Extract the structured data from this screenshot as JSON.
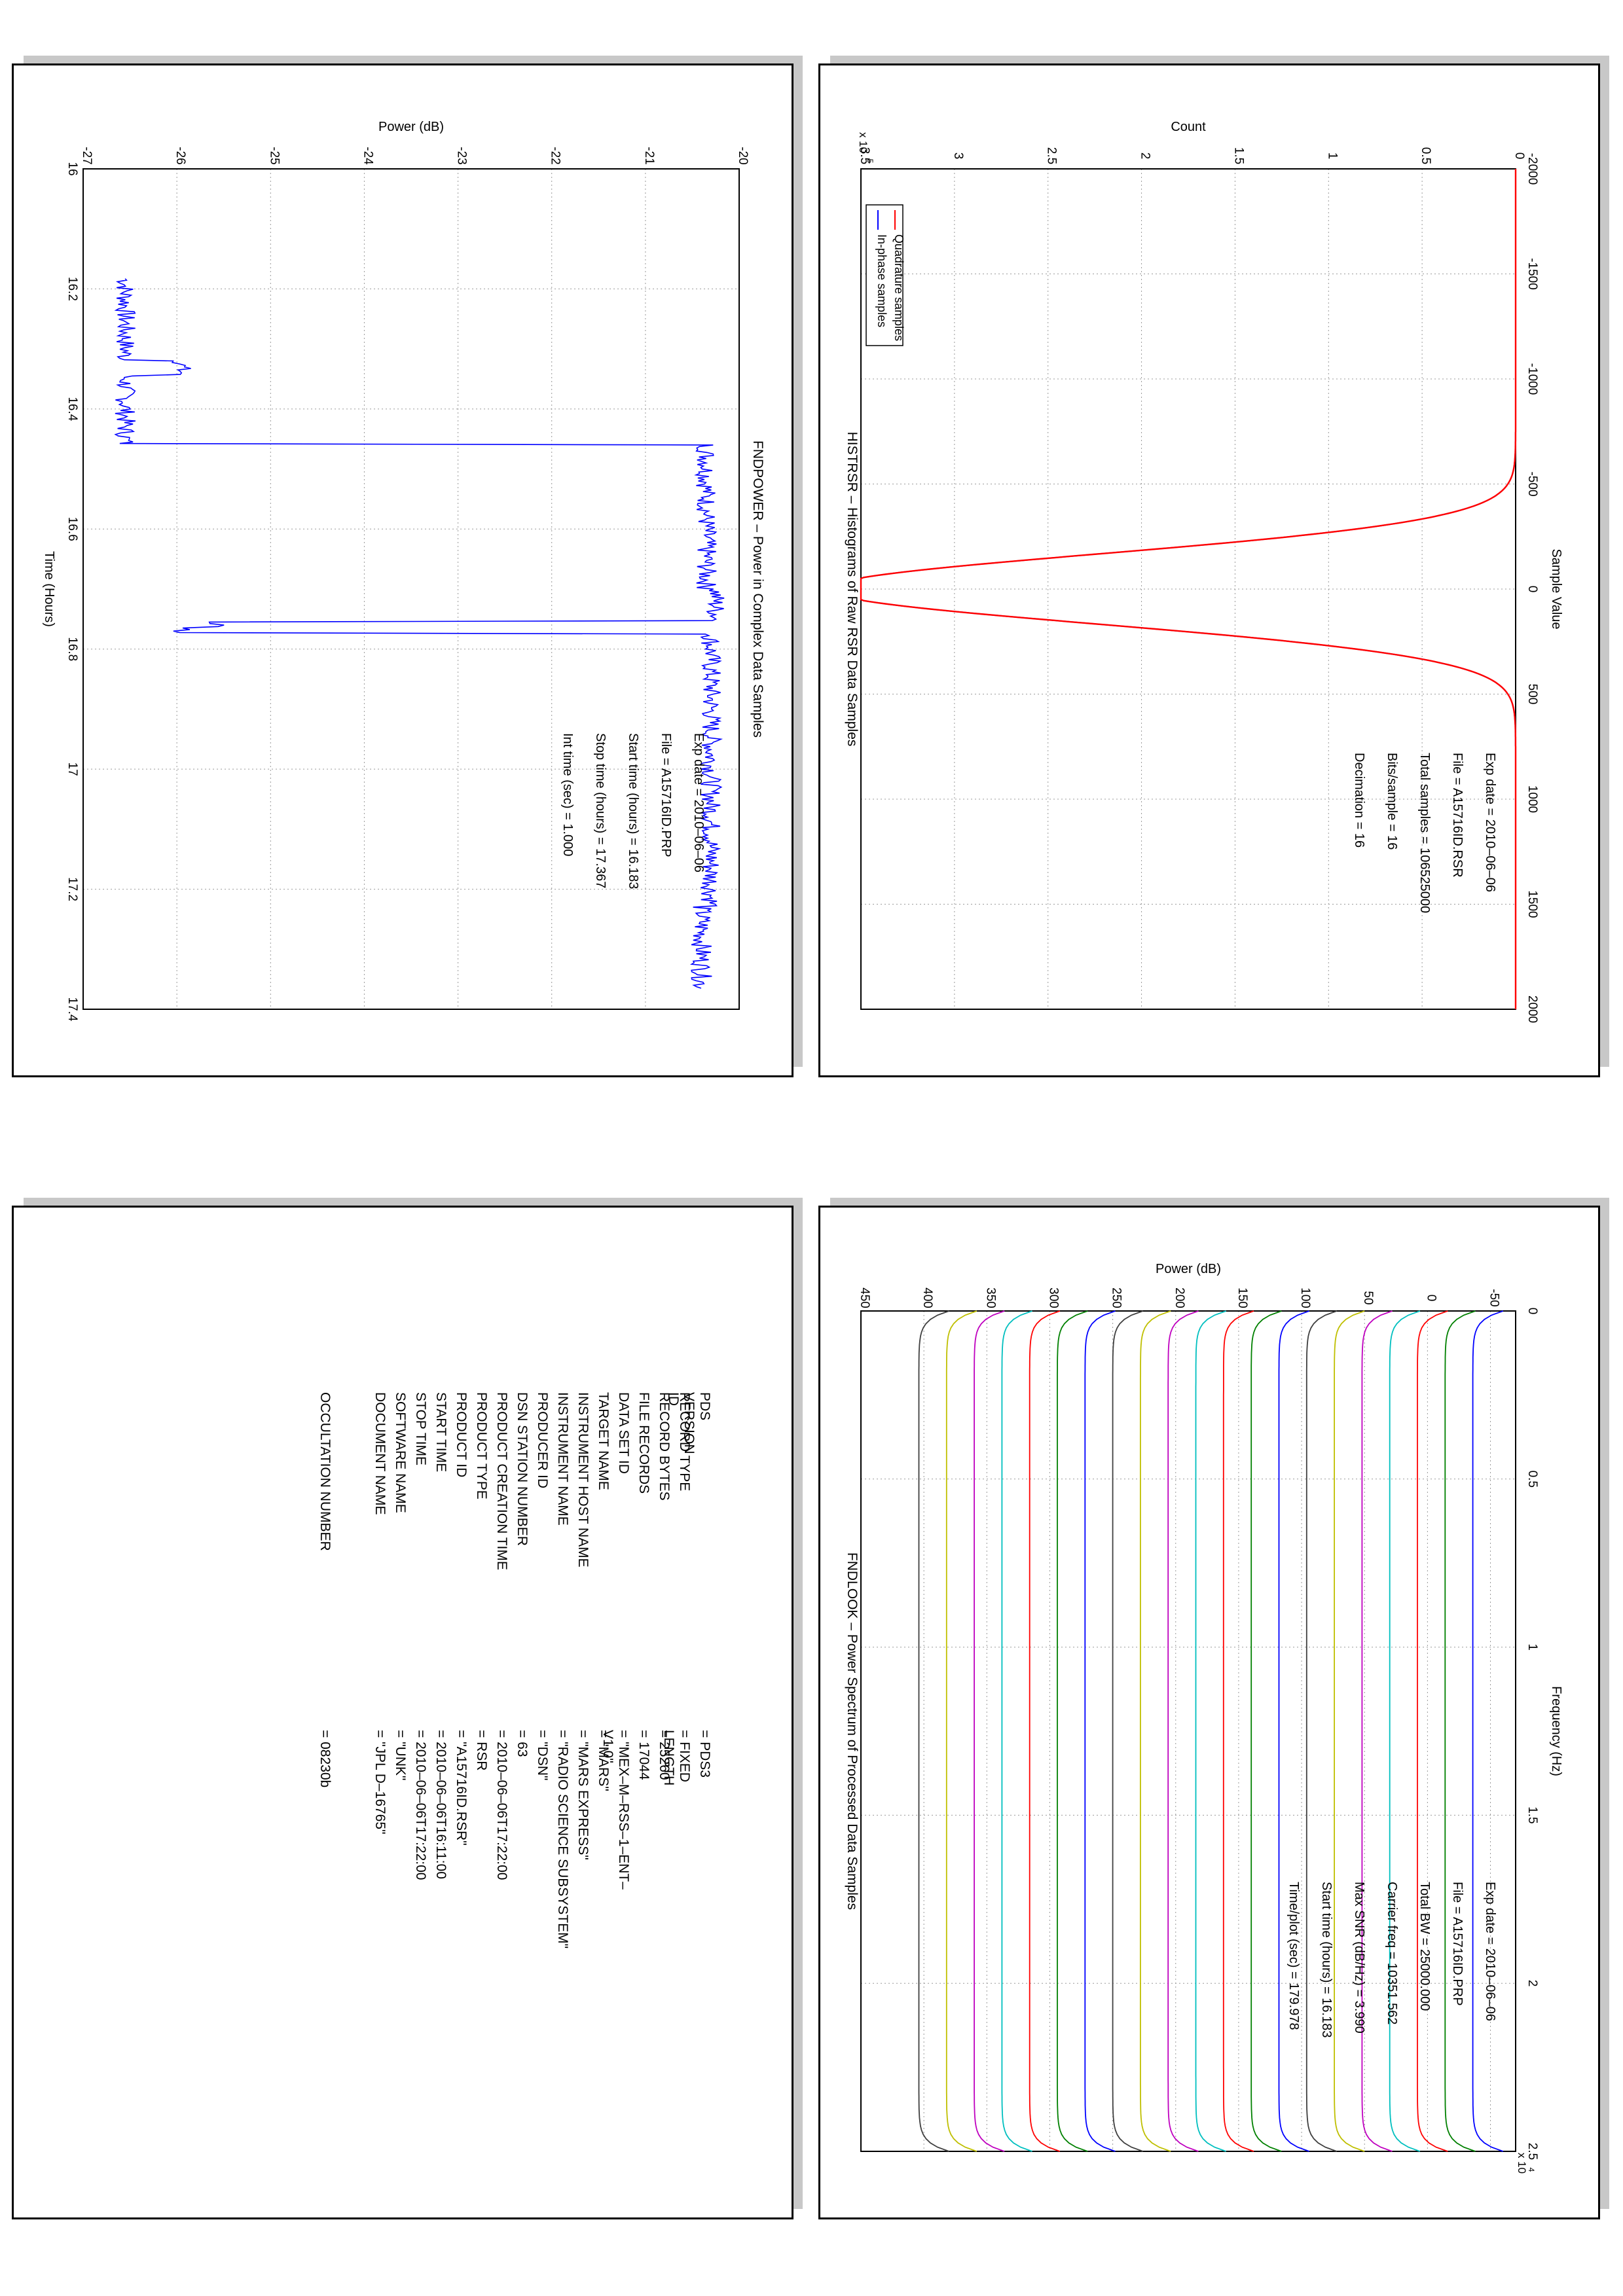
{
  "panels": {
    "histrsr": {
      "title": "HISTRSR – Histograms of Raw RSR Data Samples",
      "chart_data": {
        "type": "line",
        "title": "HISTRSR – Histograms of Raw RSR Data Samples",
        "xlabel": "Sample Value",
        "ylabel": "Count",
        "xlim": [
          -2000,
          2000
        ],
        "ylim": [
          0,
          3.5
        ],
        "y_exponent_label": "x 10",
        "y_exponent_power": "5",
        "grid": true,
        "legend_placement": "top-left",
        "xticks": [
          "-2000",
          "-1500",
          "-1000",
          "-500",
          "0",
          "500",
          "1000",
          "1500",
          "2000"
        ],
        "yticks": [
          "0",
          "0.5",
          "1",
          "1.5",
          "2",
          "2.5",
          "3",
          "3.5"
        ],
        "series": [
          {
            "name": "In-phase samples",
            "color": "#0000ff",
            "mu": 0,
            "sigma": 167,
            "peak": 3.68
          },
          {
            "name": "Quadrature samples",
            "color": "#ff0000",
            "mu": 0,
            "sigma": 167,
            "peak": 3.68
          }
        ]
      },
      "annotations": [
        "Exp date = 2010–06–06",
        "File = A15716ID.RSR",
        "Total samples =  106525000",
        "Bits/sample   =          16",
        "Decimation    =          16"
      ]
    },
    "fndpower": {
      "title": "FNDPOWER – Power in Complex Data Samples",
      "chart_data": {
        "type": "line",
        "title": "FNDPOWER – Power in Complex Data Samples",
        "xlabel": "Time (Hours)",
        "ylabel": "Power (dB)",
        "xlim": [
          16,
          17.4
        ],
        "ylim": [
          -27,
          -20
        ],
        "grid": true,
        "xticks": [
          "16",
          "16.2",
          "16.4",
          "16.6",
          "16.8",
          "17",
          "17.2",
          "17.4"
        ],
        "yticks": [
          "-27",
          "-26",
          "-25",
          "-24",
          "-23",
          "-22",
          "-21",
          "-20"
        ],
        "segments": [
          {
            "t0": 16.183,
            "t1": 16.32,
            "level": -26.55
          },
          {
            "t0": 16.32,
            "t1": 16.345,
            "level": -25.95
          },
          {
            "t0": 16.345,
            "t1": 16.46,
            "level": -26.55
          },
          {
            "t0": 16.46,
            "t1": 16.7,
            "level": -20.35
          },
          {
            "t0": 16.7,
            "t1": 16.755,
            "level": -20.25
          },
          {
            "t0": 16.755,
            "t1": 16.765,
            "level": -25.55
          },
          {
            "t0": 16.765,
            "t1": 16.775,
            "level": -25.95
          },
          {
            "t0": 16.775,
            "t1": 17.23,
            "level": -20.3
          },
          {
            "t0": 17.23,
            "t1": 17.367,
            "level": -20.4
          }
        ],
        "series": [
          {
            "color": "#0000ff"
          }
        ]
      },
      "annotations": [
        "Exp date = 2010–06–06",
        "File = A15716ID.PRP",
        "Start time (hours) =  16.183",
        "Stop time (hours)  =  17.367",
        "Int time (sec)  =     1.000"
      ]
    },
    "fndlook": {
      "title": "FNDLOOK – Power Spectrum of Processed Data Samples",
      "chart_data": {
        "type": "line",
        "title": "FNDLOOK – Power Spectrum of Processed Data Samples",
        "xlabel": "Frequency (Hz)",
        "ylabel": "Power (dB)",
        "xlim": [
          0,
          25000
        ],
        "ylim": [
          -70,
          450
        ],
        "x_exponent_label": "x 10",
        "x_exponent_power": "4",
        "grid": true,
        "xticks": [
          "0",
          "0.5",
          "1",
          "1.5",
          "2",
          "2.5"
        ],
        "yticks": [
          "-50",
          "0",
          "50",
          "100",
          "150",
          "200",
          "250",
          "300",
          "350",
          "400",
          "450"
        ],
        "series_offsets": [
          -52,
          -30,
          -8,
          14,
          36,
          58,
          80,
          102,
          124,
          146,
          168,
          190,
          212,
          234,
          256,
          278,
          300,
          322,
          344,
          366,
          388
        ],
        "series_colors": [
          "#0000ff",
          "#008000",
          "#ff0000",
          "#00bfbf",
          "#bf00bf",
          "#bfbf00",
          "#3f3f3f",
          "#0000ff",
          "#008000",
          "#ff0000",
          "#00bfbf",
          "#bf00bf",
          "#bfbf00",
          "#3f3f3f",
          "#0000ff",
          "#008000",
          "#ff0000",
          "#00bfbf",
          "#bf00bf",
          "#bfbf00",
          "#3f3f3f"
        ]
      },
      "annotations": [
        "Exp date = 2010–06–06",
        "File = A15716ID.PRP",
        "Total BW =    25000.000",
        "Carrier freq =   10351.562",
        "Max SNR (dB/Hz) =     3.990",
        "Start time (hours) =  16.183",
        "Time/plot (sec) =   179.978"
      ]
    },
    "label": {
      "rows": [
        {
          "key": "PDS VERSION ID",
          "value": "=  PDS3"
        },
        {
          "key": "RECORD TYPE",
          "value": "=  FIXED LENGTH"
        },
        {
          "key": "RECORD BYTES",
          "value": "=  25260"
        },
        {
          "key": "FILE RECORDS",
          "value": "=  17044"
        },
        {
          "key": "DATA SET ID",
          "value": "=  \"MEX–M–RSS–1–ENT–V1.0\""
        },
        {
          "key": "TARGET NAME",
          "value": "=  \"MARS\""
        },
        {
          "key": "INSTRUMENT HOST NAME",
          "value": "=  \"MARS EXPRESS\""
        },
        {
          "key": "INSTRUMENT NAME",
          "value": "=  \"RADIO SCIENCE SUBSYSTEM\""
        },
        {
          "key": "PRODUCER ID",
          "value": "=  \"DSN\""
        },
        {
          "key": "DSN STATION NUMBER",
          "value": "=  63"
        },
        {
          "key": "PRODUCT CREATION TIME",
          "value": "=  2010–06–06T17:22:00"
        },
        {
          "key": "PRODUCT TYPE",
          "value": "=  RSR"
        },
        {
          "key": "PRODUCT ID",
          "value": "=  \"A15716ID.RSR\""
        },
        {
          "key": "START TIME",
          "value": "=  2010–06–06T16:11:00"
        },
        {
          "key": "STOP TIME",
          "value": "=  2010–06–06T17:22:00"
        },
        {
          "key": "SOFTWARE NAME",
          "value": "=  \"UNK\""
        },
        {
          "key": "DOCUMENT NAME",
          "value": "=  \"JPL D–16765\""
        },
        {
          "key": "OCCULTATION NUMBER",
          "value": "=  08230b"
        }
      ]
    }
  }
}
